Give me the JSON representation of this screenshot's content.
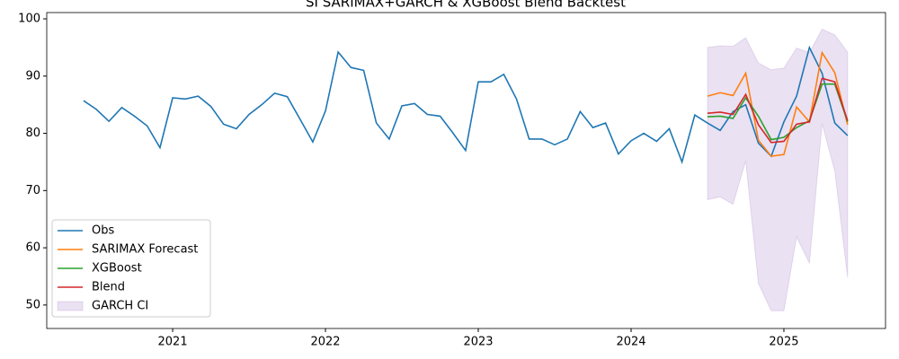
{
  "chart_data": {
    "type": "line",
    "title": "SI SARIMAX+GARCH & XGBoost Blend Backtest",
    "xlim": [
      2020.176,
      2025.665
    ],
    "xticks": [
      2021,
      2022,
      2023,
      2024,
      2025
    ],
    "ylim": [
      45.9,
      101.1
    ],
    "yticks": [
      50,
      60,
      70,
      80,
      90,
      100
    ],
    "legend": "lower left",
    "series": [
      {
        "name": "Obs",
        "color": "#1f77b4",
        "x": [
          2020.417,
          2020.5,
          2020.583,
          2020.667,
          2020.75,
          2020.833,
          2020.917,
          2021,
          2021.083,
          2021.167,
          2021.25,
          2021.333,
          2021.417,
          2021.5,
          2021.583,
          2021.667,
          2021.75,
          2021.833,
          2021.917,
          2022,
          2022.083,
          2022.167,
          2022.25,
          2022.333,
          2022.417,
          2022.5,
          2022.583,
          2022.667,
          2022.75,
          2022.833,
          2022.917,
          2023,
          2023.083,
          2023.167,
          2023.25,
          2023.333,
          2023.417,
          2023.5,
          2023.583,
          2023.667,
          2023.75,
          2023.833,
          2023.917,
          2024,
          2024.083,
          2024.167,
          2024.25,
          2024.333,
          2024.417,
          2024.5,
          2024.583,
          2024.667,
          2024.75,
          2024.833,
          2024.917,
          2025,
          2025.083,
          2025.167,
          2025.25,
          2025.333,
          2025.417
        ],
        "values": [
          85.7,
          84.2,
          82.1,
          84.5,
          83.0,
          81.3,
          77.5,
          86.2,
          86.0,
          86.5,
          84.7,
          81.6,
          80.8,
          83.3,
          85.0,
          87.0,
          86.4,
          82.5,
          78.5,
          83.9,
          94.2,
          91.5,
          91.0,
          81.8,
          79.0,
          84.8,
          85.2,
          83.3,
          83.0,
          80.1,
          77.0,
          89.0,
          89.0,
          90.3,
          86.0,
          79.0,
          79.0,
          78.0,
          79.0,
          83.8,
          81.0,
          81.8,
          76.4,
          78.7,
          80.0,
          78.6,
          80.8,
          75.0,
          83.2,
          81.8,
          80.5,
          83.8,
          85.0,
          78.3,
          76.0,
          82.0,
          86.5,
          95.0,
          90.5,
          81.8,
          79.6
        ]
      },
      {
        "name": "SARIMAX Forecast",
        "color": "#ff7f0e",
        "x": [
          2024.5,
          2024.583,
          2024.667,
          2024.75,
          2024.833,
          2024.917,
          2025,
          2025.083,
          2025.167,
          2025.25,
          2025.333,
          2025.417
        ],
        "values": [
          86.5,
          87.1,
          86.6,
          90.5,
          78.8,
          76.0,
          76.3,
          84.6,
          82.0,
          94.1,
          90.6,
          81.5
        ]
      },
      {
        "name": "XGBoost",
        "color": "#2ca02c",
        "x": [
          2024.5,
          2024.583,
          2024.667,
          2024.75,
          2024.833,
          2024.917,
          2025,
          2025.083,
          2025.167,
          2025.25,
          2025.333,
          2025.417
        ],
        "values": [
          82.9,
          83.0,
          82.6,
          86.2,
          83.0,
          78.9,
          79.3,
          81.0,
          82.2,
          88.6,
          88.6,
          82.0
        ]
      },
      {
        "name": "Blend",
        "color": "#d62728",
        "x": [
          2024.5,
          2024.583,
          2024.667,
          2024.75,
          2024.833,
          2024.917,
          2025,
          2025.083,
          2025.167,
          2025.25,
          2025.333,
          2025.417
        ],
        "values": [
          83.5,
          83.7,
          83.3,
          86.8,
          81.5,
          78.4,
          78.6,
          81.6,
          82.0,
          89.6,
          89.0,
          82.2
        ]
      }
    ],
    "band": {
      "name": "GARCH CI",
      "color": "#9467bd",
      "opacity": 0.2,
      "x": [
        2024.5,
        2024.583,
        2024.667,
        2024.75,
        2024.833,
        2024.917,
        2025,
        2025.083,
        2025.167,
        2025.25,
        2025.333,
        2025.417
      ],
      "upper": [
        95.0,
        95.3,
        95.2,
        96.7,
        92.3,
        91.1,
        91.4,
        94.9,
        94.1,
        98.2,
        97.2,
        94.2
      ],
      "lower": [
        68.4,
        68.9,
        67.6,
        75.2,
        53.8,
        49.0,
        49.0,
        61.9,
        57.3,
        81.7,
        73.4,
        54.8
      ]
    }
  }
}
